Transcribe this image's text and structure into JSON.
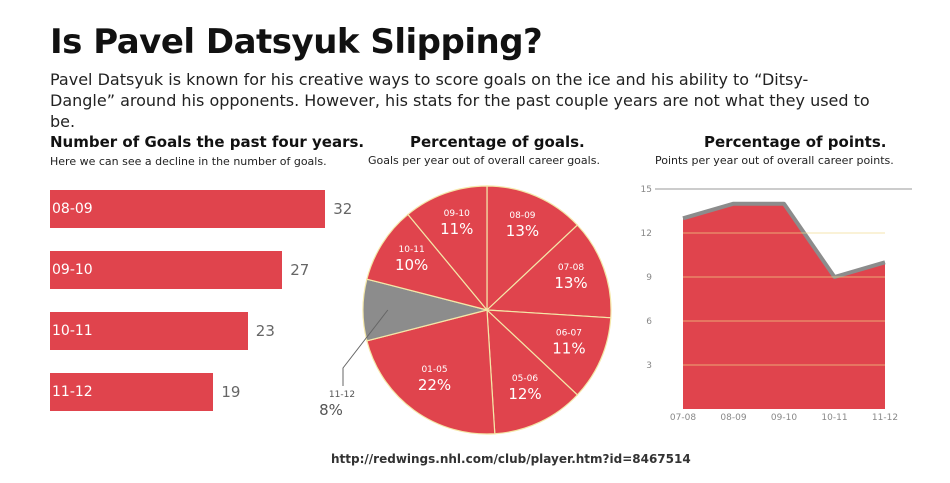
{
  "header": {
    "title": "Is Pavel Datsyuk Slipping?",
    "intro": "Pavel Datsyuk is known for his creative ways to score goals on the ice and his ability to “Ditsy-Dangle” around his opponents. However, his stats for the past couple years are not what they used to be."
  },
  "colors": {
    "accent": "#e0444d",
    "highlight": "#8c8c8c",
    "value_text": "#666666"
  },
  "chart_data": [
    {
      "type": "bar",
      "title": "Number of Goals the past four years.",
      "subtitle": "Here we can see a decline in the number of goals.",
      "categories": [
        "08-09",
        "09-10",
        "10-11",
        "11-12"
      ],
      "values": [
        32,
        27,
        23,
        19
      ]
    },
    {
      "type": "pie",
      "title": "Percentage of goals.",
      "subtitle": "Goals per year out of overall career goals.",
      "slices": [
        {
          "label": "08-09",
          "value": 13,
          "display": "13%"
        },
        {
          "label": "07-08",
          "value": 13,
          "display": "13%"
        },
        {
          "label": "06-07",
          "value": 11,
          "display": "11%"
        },
        {
          "label": "05-06",
          "value": 12,
          "display": "12%"
        },
        {
          "label": "01-05",
          "value": 22,
          "display": "22%"
        },
        {
          "label": "11-12",
          "value": 8,
          "display": "8%",
          "highlight": true
        },
        {
          "label": "10-11",
          "value": 10,
          "display": "10%"
        },
        {
          "label": "09-10",
          "value": 11,
          "display": "11%"
        }
      ]
    },
    {
      "type": "area",
      "title": "Percentage of points.",
      "subtitle": "Points per year out of overall career points.",
      "categories": [
        "07-08",
        "08-09",
        "09-10",
        "10-11",
        "11-12"
      ],
      "values": [
        13,
        14,
        14,
        9,
        10
      ],
      "ylim": [
        0,
        15
      ],
      "yticks": [
        3,
        6,
        9,
        12,
        15
      ],
      "grid": true
    }
  ],
  "footer": {
    "source": "http://redwings.nhl.com/club/player.htm?id=8467514"
  }
}
